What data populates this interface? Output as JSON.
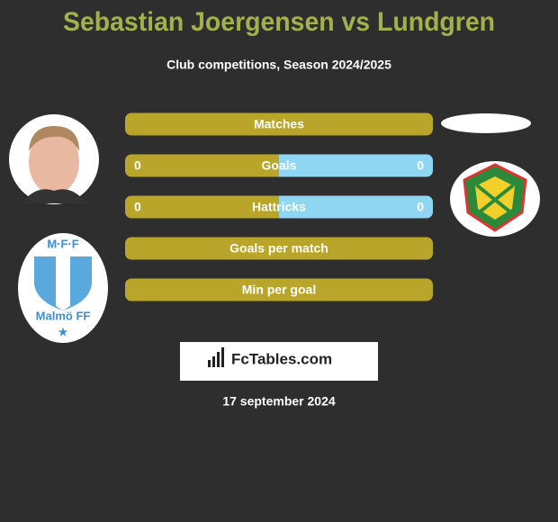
{
  "header": {
    "title": "Sebastian Joergensen vs Lundgren",
    "subtitle": "Club competitions, Season 2024/2025"
  },
  "rows": [
    {
      "label": "Matches"
    },
    {
      "label": "Goals",
      "left": 0,
      "right": 0
    },
    {
      "label": "Hattricks",
      "left": 0,
      "right": 0
    },
    {
      "label": "Goals per match"
    },
    {
      "label": "Min per goal"
    }
  ],
  "badge": {
    "initials": "M·F·F",
    "name": "Malmö FF"
  },
  "brand": "FcTables.com",
  "date": "17 september 2024"
}
